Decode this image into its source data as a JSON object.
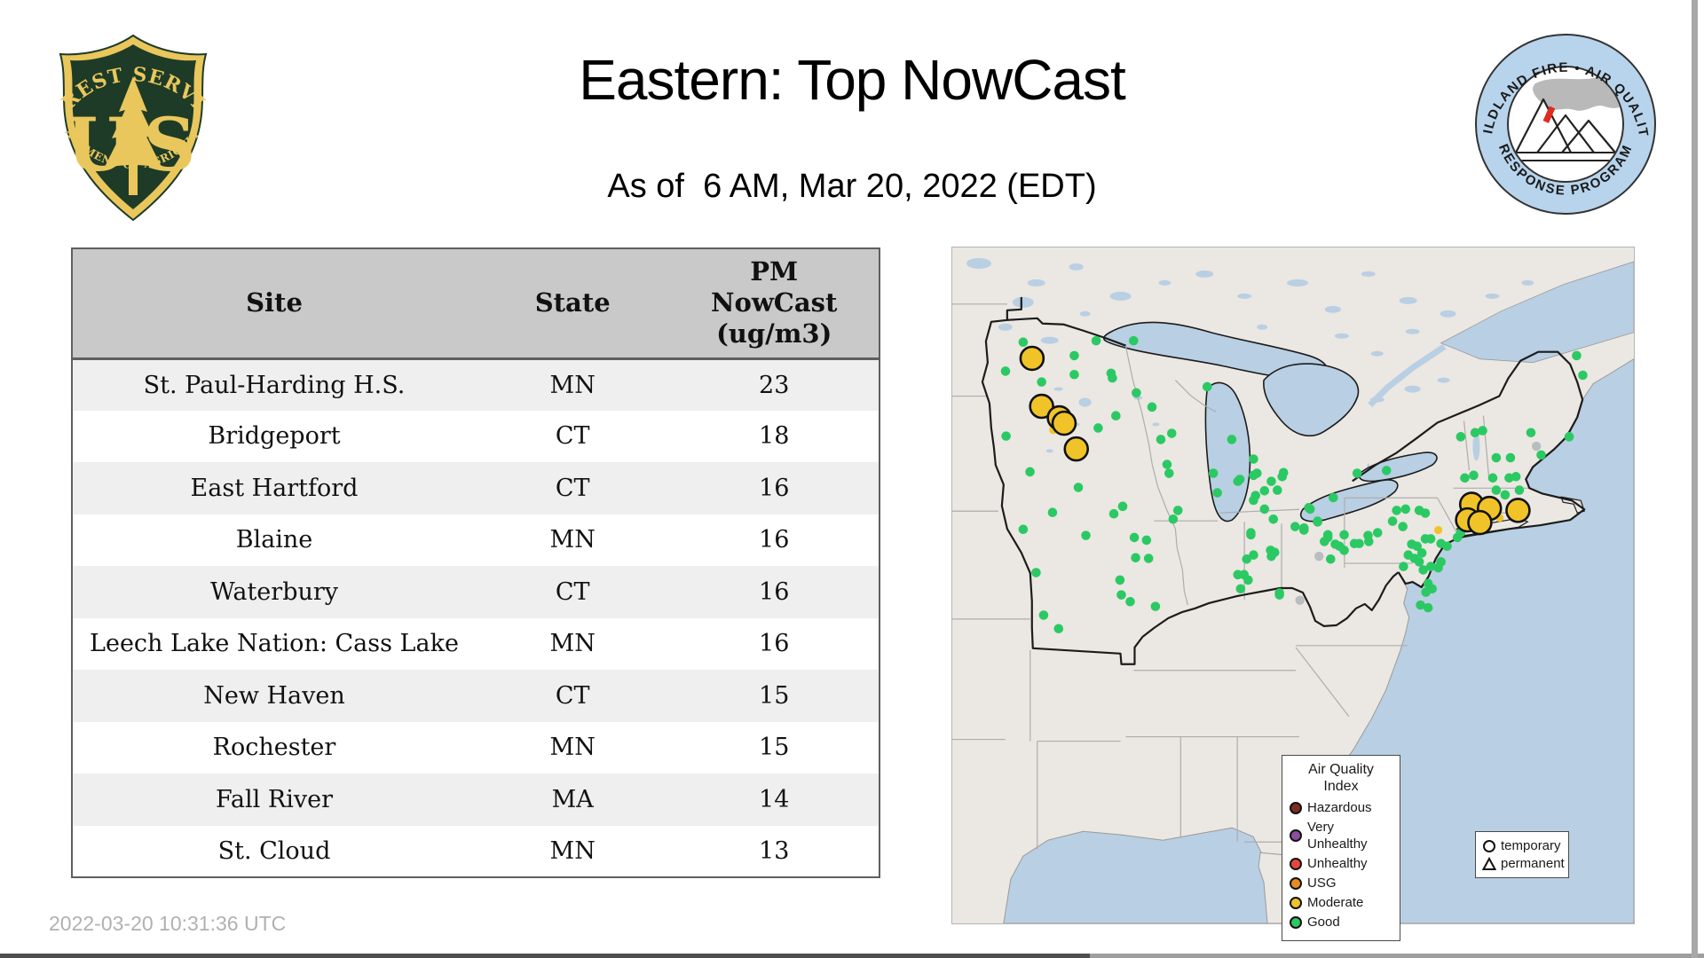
{
  "header": {
    "title": "Eastern: Top NowCast",
    "subtitle": "As of  6 AM, Mar 20, 2022 (EDT)",
    "fs_logo": {
      "arc_top": "FOREST SERVICE",
      "us": "US",
      "arc_bottom": "DEPARTMENT OF AGRICULTURE"
    },
    "wfaqrp_logo": {
      "arc_top": "WILDLAND FIRE • AIR QUALITY",
      "arc_bottom": "RESPONSE PROGRAM"
    }
  },
  "table": {
    "columns": {
      "site": "Site",
      "state": "State"
    },
    "pm_header_lines": [
      "PM",
      "NowCast",
      "(ug/m3)"
    ],
    "rows": [
      {
        "site": "St. Paul-Harding H.S.",
        "state": "MN",
        "pm": "23"
      },
      {
        "site": "Bridgeport",
        "state": "CT",
        "pm": "18"
      },
      {
        "site": "East Hartford",
        "state": "CT",
        "pm": "16"
      },
      {
        "site": "Blaine",
        "state": "MN",
        "pm": "16"
      },
      {
        "site": "Waterbury",
        "state": "CT",
        "pm": "16"
      },
      {
        "site": "Leech Lake Nation: Cass Lake",
        "state": "MN",
        "pm": "16"
      },
      {
        "site": "New Haven",
        "state": "CT",
        "pm": "15"
      },
      {
        "site": "Rochester",
        "state": "MN",
        "pm": "15"
      },
      {
        "site": "Fall River",
        "state": "MA",
        "pm": "14"
      },
      {
        "site": "St. Cloud",
        "state": "MN",
        "pm": "13"
      }
    ]
  },
  "footer": {
    "timestamp": "2022-03-20 10:31:36 UTC"
  },
  "map": {
    "colors": {
      "land": "#ebe7e2",
      "water": "#b9cfe3",
      "good": "#2bc963",
      "moderate": "#f0c429",
      "no_data": "#b9bdc0",
      "hazardous": "#7d2b25",
      "very_unhealthy": "#8f4d9f",
      "unhealthy": "#e8463c",
      "usg": "#e78b1f"
    },
    "aqi_legend": {
      "title": "Air Quality Index",
      "items": [
        {
          "label": "Hazardous",
          "color": "#7d2b25"
        },
        {
          "label": "Very Unhealthy",
          "color": "#8f4d9f"
        },
        {
          "label": "Unhealthy",
          "color": "#e8463c"
        },
        {
          "label": "USG",
          "color": "#e78b1f"
        },
        {
          "label": "Moderate",
          "color": "#f0c429"
        },
        {
          "label": "Good",
          "color": "#2bc963"
        }
      ]
    },
    "marker_legend": {
      "items": [
        {
          "shape": "circle",
          "label": "temporary"
        },
        {
          "shape": "triangle",
          "label": "permanent"
        }
      ]
    },
    "markers": {
      "good": [
        [
          10.4,
          14.0
        ],
        [
          21.1,
          13.8
        ],
        [
          26.6,
          13.8
        ],
        [
          17.9,
          16.0
        ],
        [
          7.8,
          18.3
        ],
        [
          13.1,
          19.9
        ],
        [
          17.9,
          18.8
        ],
        [
          23.3,
          18.6
        ],
        [
          23.5,
          19.3
        ],
        [
          27.0,
          21.5
        ],
        [
          29.3,
          23.6
        ],
        [
          24.0,
          24.9
        ],
        [
          21.4,
          26.7
        ],
        [
          7.9,
          27.9
        ],
        [
          11.4,
          33.2
        ],
        [
          18.5,
          35.5
        ],
        [
          14.7,
          39.2
        ],
        [
          23.7,
          39.4
        ],
        [
          25.0,
          38.3
        ],
        [
          10.4,
          41.7
        ],
        [
          19.6,
          42.6
        ],
        [
          12.3,
          48.1
        ],
        [
          24.6,
          49.2
        ],
        [
          26.7,
          42.9
        ],
        [
          28.5,
          43.3
        ],
        [
          26.9,
          45.9
        ],
        [
          28.8,
          46.0
        ],
        [
          31.5,
          32.1
        ],
        [
          32.2,
          27.5
        ],
        [
          30.6,
          28.4
        ],
        [
          31.8,
          33.4
        ],
        [
          33.1,
          38.9
        ],
        [
          32.4,
          40.2
        ],
        [
          37.4,
          20.6
        ],
        [
          38.3,
          33.4
        ],
        [
          38.9,
          36.3
        ],
        [
          41.0,
          28.4
        ],
        [
          41.9,
          34.6
        ],
        [
          44.2,
          31.3
        ],
        [
          44.7,
          33.4
        ],
        [
          44.5,
          36.7
        ],
        [
          46.8,
          34.6
        ],
        [
          47.7,
          35.9
        ],
        [
          43.8,
          42.2
        ],
        [
          46.7,
          44.8
        ],
        [
          48.6,
          33.3
        ],
        [
          42.3,
          50.5
        ],
        [
          24.8,
          51.4
        ],
        [
          26.1,
          52.4
        ],
        [
          29.8,
          53.1
        ],
        [
          13.4,
          54.4
        ],
        [
          15.6,
          56.4
        ],
        [
          42.8,
          48.4
        ],
        [
          43.4,
          49.2
        ],
        [
          48.0,
          51.4
        ],
        [
          42.2,
          34.3
        ],
        [
          44.2,
          33.7
        ],
        [
          48.4,
          33.9
        ],
        [
          45.8,
          36.0
        ],
        [
          44.2,
          37.4
        ],
        [
          45.8,
          38.7
        ],
        [
          52.5,
          38.7
        ],
        [
          47.1,
          40.2
        ],
        [
          50.3,
          41.3
        ],
        [
          51.6,
          41.5
        ],
        [
          53.6,
          40.5
        ],
        [
          43.8,
          42.5
        ],
        [
          55.1,
          42.5
        ],
        [
          57.5,
          42.5
        ],
        [
          54.6,
          43.5
        ],
        [
          56.2,
          43.9
        ],
        [
          59.0,
          43.8
        ],
        [
          61.1,
          43.5
        ],
        [
          55.5,
          46.1
        ],
        [
          57.5,
          44.8
        ],
        [
          44.2,
          45.5
        ],
        [
          43.2,
          46.1
        ],
        [
          47.3,
          45.1
        ],
        [
          46.8,
          45.7
        ],
        [
          41.9,
          48.4
        ],
        [
          62.4,
          42.2
        ],
        [
          66.1,
          41.3
        ],
        [
          65.2,
          38.9
        ],
        [
          66.5,
          38.7
        ],
        [
          68.5,
          38.9
        ],
        [
          69.4,
          39.3
        ],
        [
          64.6,
          40.5
        ],
        [
          67.4,
          43.9
        ],
        [
          68.2,
          44.2
        ],
        [
          66.9,
          45.5
        ],
        [
          69.4,
          43.1
        ],
        [
          70.2,
          43.1
        ],
        [
          71.7,
          43.8
        ],
        [
          72.6,
          44.2
        ],
        [
          74.1,
          42.9
        ],
        [
          74.6,
          42.2
        ],
        [
          75.0,
          41.3
        ],
        [
          76.0,
          41.2
        ],
        [
          76.9,
          40.2
        ],
        [
          75.2,
          34.1
        ],
        [
          76.5,
          33.7
        ],
        [
          79.3,
          34.1
        ],
        [
          79.8,
          35.9
        ],
        [
          81.1,
          36.6
        ],
        [
          81.7,
          34.1
        ],
        [
          68.5,
          46.5
        ],
        [
          69.1,
          47.7
        ],
        [
          70.2,
          47.2
        ],
        [
          71.3,
          47.4
        ],
        [
          71.7,
          46.5
        ],
        [
          69.8,
          49.7
        ],
        [
          70.4,
          50.5
        ],
        [
          69.5,
          51.0
        ],
        [
          68.7,
          52.9
        ],
        [
          69.8,
          53.3
        ],
        [
          48.0,
          51.1
        ],
        [
          67.8,
          46.0
        ],
        [
          68.9,
          45.2
        ],
        [
          66.2,
          47.2
        ],
        [
          74.6,
          28.0
        ],
        [
          76.7,
          27.4
        ],
        [
          77.8,
          27.1
        ],
        [
          79.8,
          31.1
        ],
        [
          81.9,
          31.1
        ],
        [
          84.9,
          27.4
        ],
        [
          90.5,
          28.0
        ],
        [
          91.6,
          16.0
        ],
        [
          92.5,
          18.9
        ],
        [
          86.4,
          30.7
        ],
        [
          82.7,
          33.9
        ],
        [
          83.2,
          35.9
        ],
        [
          59.4,
          33.4
        ],
        [
          63.7,
          33.0
        ],
        [
          55.9,
          37.0
        ],
        [
          52.3,
          38.5
        ],
        [
          53.6,
          40.6
        ],
        [
          51.6,
          41.8
        ],
        [
          55.1,
          42.9
        ],
        [
          56.8,
          44.2
        ],
        [
          59.7,
          43.8
        ],
        [
          61.0,
          42.6
        ],
        [
          74.7,
          39.6
        ]
      ],
      "moderate_large": [
        [
          11.7,
          16.4
        ],
        [
          13.1,
          23.5
        ],
        [
          15.7,
          25.2
        ],
        [
          16.4,
          26.0
        ],
        [
          18.2,
          29.8
        ],
        [
          76.2,
          38.0
        ],
        [
          78.8,
          38.6
        ],
        [
          75.6,
          40.3
        ],
        [
          77.4,
          40.7
        ],
        [
          83.0,
          38.9
        ]
      ],
      "moderate_small": [
        [
          14.8,
          27.0
        ],
        [
          71.3,
          41.8
        ],
        [
          80.3,
          40.0
        ]
      ],
      "no_data": [
        [
          53.8,
          45.7
        ],
        [
          51.0,
          52.2
        ],
        [
          85.7,
          29.4
        ]
      ]
    }
  }
}
